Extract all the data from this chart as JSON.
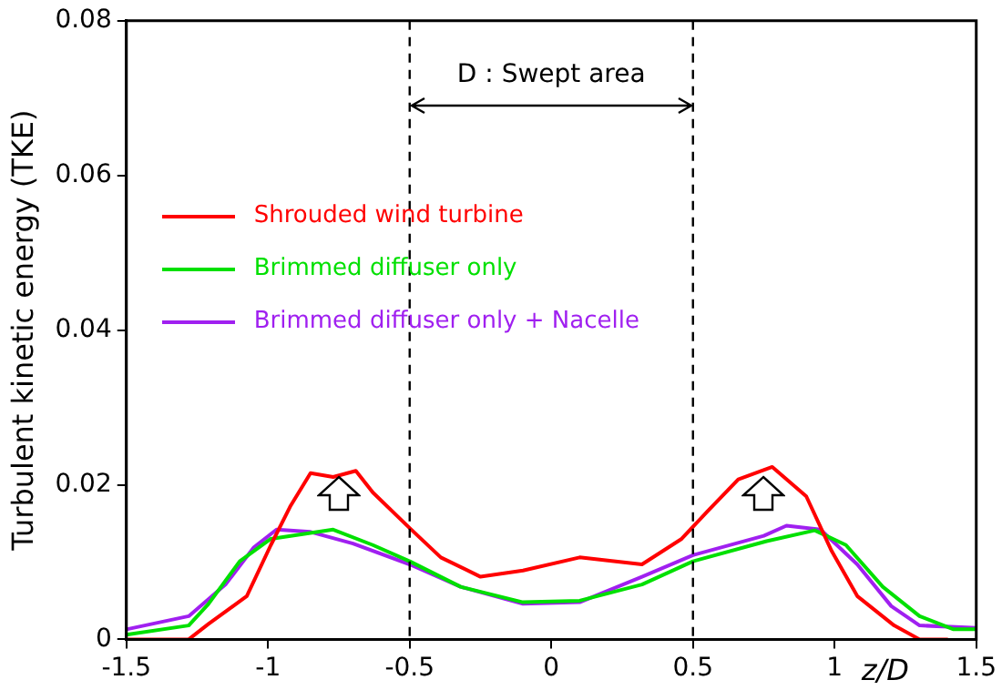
{
  "chart_data": {
    "type": "line",
    "xlabel": "z/D",
    "ylabel": "Turbulent kinetic energy (TKE)",
    "xlim": [
      -1.5,
      1.5
    ],
    "xticks": [
      -1.5,
      -1,
      -0.5,
      0,
      0.5,
      1,
      1.5
    ],
    "ylim": [
      0,
      0.08
    ],
    "yticks": [
      0,
      0.02,
      0.04,
      0.06,
      0.08
    ],
    "grid": false,
    "legend": "top left",
    "marker": "none",
    "line_style": "solid",
    "annotations": [
      "D : Swept area"
    ],
    "ref_lines": [
      {
        "axis": "x",
        "value": -0.5,
        "color": "#000000",
        "line_style": "dashed"
      },
      {
        "axis": "x",
        "value": 0.5,
        "color": "#000000",
        "line_style": "dashed"
      }
    ],
    "series": [
      {
        "name": "Shrouded wind turbine",
        "color": "#ff0000",
        "x": [
          -1.5,
          -1.28,
          -1.21,
          -1.075,
          -0.99,
          -0.92,
          -0.85,
          -0.77,
          -0.69,
          -0.63,
          -0.5,
          -0.39,
          -0.25,
          -0.1,
          0.1,
          0.32,
          0.46,
          0.55,
          0.66,
          0.78,
          0.9,
          0.99,
          1.08,
          1.21,
          1.3,
          1.4
        ],
        "values": [
          0,
          0,
          0.002,
          0.0056,
          0.0122,
          0.0173,
          0.0215,
          0.021,
          0.0218,
          0.019,
          0.0144,
          0.0106,
          0.0081,
          0.0089,
          0.0106,
          0.0097,
          0.013,
          0.0165,
          0.0207,
          0.0223,
          0.0185,
          0.0114,
          0.0056,
          0.0018,
          0,
          0
        ]
      },
      {
        "name": "Brimmed diffuser only",
        "color": "#00e000",
        "x": [
          -1.5,
          -1.28,
          -1.21,
          -1.1,
          -0.99,
          -0.77,
          -0.63,
          -0.5,
          -0.32,
          -0.1,
          0.1,
          0.32,
          0.5,
          0.76,
          0.93,
          1.04,
          1.17,
          1.3,
          1.42,
          1.5
        ],
        "values": [
          0.0006,
          0.0018,
          0.0046,
          0.0101,
          0.013,
          0.0142,
          0.0122,
          0.0101,
          0.0068,
          0.0048,
          0.005,
          0.0071,
          0.0101,
          0.0127,
          0.0141,
          0.0122,
          0.0068,
          0.003,
          0.0013,
          0.0013
        ]
      },
      {
        "name": "Brimmed diffuser only + Nacelle",
        "color": "#a020f0",
        "x": [
          -1.5,
          -1.28,
          -1.15,
          -1.05,
          -0.97,
          -0.85,
          -0.7,
          -0.5,
          -0.32,
          -0.1,
          0.1,
          0.32,
          0.5,
          0.75,
          0.83,
          0.95,
          1.08,
          1.2,
          1.3,
          1.5
        ],
        "values": [
          0.0013,
          0.003,
          0.0071,
          0.0119,
          0.0142,
          0.0139,
          0.0124,
          0.0097,
          0.0068,
          0.0046,
          0.0048,
          0.0081,
          0.0109,
          0.0134,
          0.0147,
          0.0142,
          0.0097,
          0.0043,
          0.0018,
          0.0015
        ]
      }
    ]
  }
}
